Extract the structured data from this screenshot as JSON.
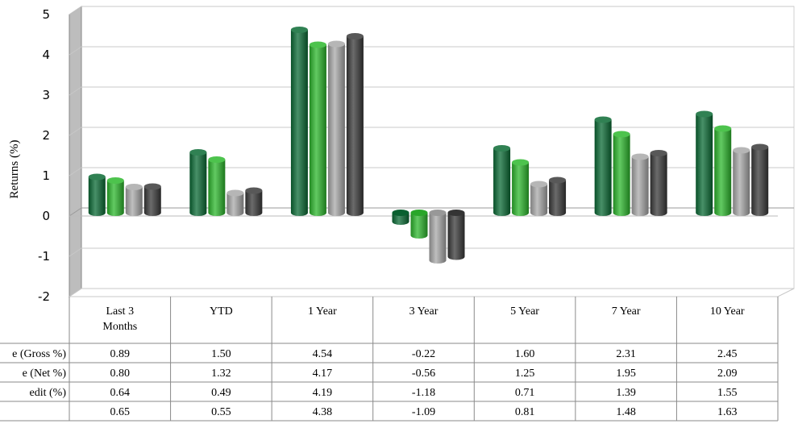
{
  "chart_data": {
    "type": "bar",
    "ylabel": "Returns (%)",
    "ylim": [
      -2,
      5
    ],
    "yticks": [
      "5",
      "4",
      "3",
      "2",
      "1",
      "0",
      "-1",
      "-2"
    ],
    "grid": true,
    "style": "3d-cylinder",
    "categories": [
      "Last 3 Months",
      "YTD",
      "1 Year",
      "3 Year",
      "5 Year",
      "7 Year",
      "10 Year"
    ],
    "category_labels": [
      [
        "Last 3",
        "Months"
      ],
      [
        "YTD"
      ],
      [
        "1 Year"
      ],
      [
        "3 Year"
      ],
      [
        "5 Year"
      ],
      [
        "7 Year"
      ],
      [
        "10 Year"
      ]
    ],
    "series": [
      {
        "name": "e (Gross %)",
        "color": "#0b6b35",
        "values": [
          0.89,
          1.5,
          4.54,
          -0.22,
          1.6,
          2.31,
          2.45
        ],
        "labels": [
          "0.89",
          "1.50",
          "4.54",
          "-0.22",
          "1.60",
          "2.31",
          "2.45"
        ]
      },
      {
        "name": "e (Net %)",
        "color": "#2db82d",
        "values": [
          0.8,
          1.32,
          4.17,
          -0.56,
          1.25,
          1.95,
          2.09
        ],
        "labels": [
          "0.80",
          "1.32",
          "4.17",
          "-0.56",
          "1.25",
          "1.95",
          "2.09"
        ]
      },
      {
        "name": "edit (%)",
        "color": "#a9a9a9",
        "values": [
          0.64,
          0.49,
          4.19,
          -1.18,
          0.71,
          1.39,
          1.55
        ],
        "labels": [
          "0.64",
          "0.49",
          "4.19",
          "-1.18",
          "0.71",
          "1.39",
          "1.55"
        ]
      },
      {
        "name": "",
        "color": "#3a3a3a",
        "values": [
          0.65,
          0.55,
          4.38,
          -1.09,
          0.81,
          1.48,
          1.63
        ],
        "labels": [
          "0.65",
          "0.55",
          "4.38",
          "-1.09",
          "0.81",
          "1.48",
          "1.63"
        ]
      }
    ]
  }
}
